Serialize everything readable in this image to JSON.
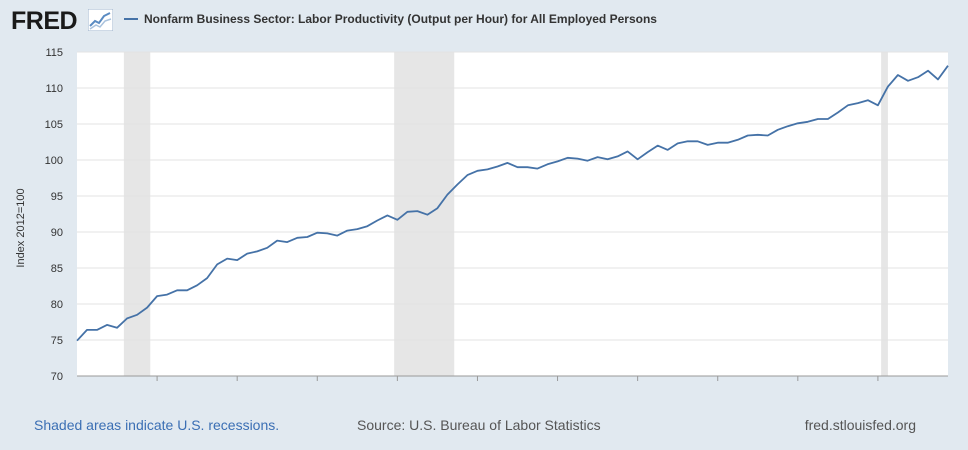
{
  "header": {
    "logo_text": "FRED",
    "logo_icon": "line-chart-icon"
  },
  "footer": {
    "recession_note": "Shaded areas indicate U.S. recessions.",
    "source": "Source: U.S. Bureau of Labor Statistics",
    "site": "fred.stlouisfed.org"
  },
  "colors": {
    "background": "#e1e9f0",
    "plot_background": "#ffffff",
    "series_line": "#4572a7",
    "recession_shade": "#e6e6e6",
    "link": "#3b6fb4"
  },
  "chart_data": {
    "type": "line",
    "title": "",
    "xlabel": "",
    "ylabel": "Index 2012=100",
    "ylim": [
      70,
      115
    ],
    "xlim": [
      2000.0,
      2021.75
    ],
    "yticks": [
      70,
      75,
      80,
      85,
      90,
      95,
      100,
      105,
      110,
      115
    ],
    "xticks": [
      "2002",
      "2004",
      "2006",
      "2008",
      "2010",
      "2012",
      "2014",
      "2016",
      "2018",
      "2020"
    ],
    "grid": "horizontal",
    "legend_position": "top",
    "recessions": [
      {
        "start": 2001.17,
        "end": 2001.83
      },
      {
        "start": 2007.92,
        "end": 2009.42
      },
      {
        "start": 2020.08,
        "end": 2020.25
      }
    ],
    "series": [
      {
        "name": "Nonfarm Business Sector: Labor Productivity (Output per Hour) for All Employed Persons",
        "x": [
          2000.0,
          2000.25,
          2000.5,
          2000.75,
          2001.0,
          2001.25,
          2001.5,
          2001.75,
          2002.0,
          2002.25,
          2002.5,
          2002.75,
          2003.0,
          2003.25,
          2003.5,
          2003.75,
          2004.0,
          2004.25,
          2004.5,
          2004.75,
          2005.0,
          2005.25,
          2005.5,
          2005.75,
          2006.0,
          2006.25,
          2006.5,
          2006.75,
          2007.0,
          2007.25,
          2007.5,
          2007.75,
          2008.0,
          2008.25,
          2008.5,
          2008.75,
          2009.0,
          2009.25,
          2009.5,
          2009.75,
          2010.0,
          2010.25,
          2010.5,
          2010.75,
          2011.0,
          2011.25,
          2011.5,
          2011.75,
          2012.0,
          2012.25,
          2012.5,
          2012.75,
          2013.0,
          2013.25,
          2013.5,
          2013.75,
          2014.0,
          2014.25,
          2014.5,
          2014.75,
          2015.0,
          2015.25,
          2015.5,
          2015.75,
          2016.0,
          2016.25,
          2016.5,
          2016.75,
          2017.0,
          2017.25,
          2017.5,
          2017.75,
          2018.0,
          2018.25,
          2018.5,
          2018.75,
          2019.0,
          2019.25,
          2019.5,
          2019.75,
          2020.0,
          2020.25,
          2020.5,
          2020.75,
          2021.0,
          2021.25,
          2021.5,
          2021.75
        ],
        "values": [
          74.9,
          76.4,
          76.4,
          77.1,
          76.7,
          78.0,
          78.5,
          79.5,
          81.1,
          81.3,
          81.9,
          81.9,
          82.6,
          83.6,
          85.5,
          86.3,
          86.1,
          87.0,
          87.3,
          87.8,
          88.8,
          88.6,
          89.2,
          89.3,
          89.9,
          89.8,
          89.5,
          90.2,
          90.4,
          90.8,
          91.6,
          92.3,
          91.7,
          92.8,
          92.9,
          92.4,
          93.3,
          95.2,
          96.6,
          97.9,
          98.5,
          98.7,
          99.1,
          99.6,
          99.0,
          99.0,
          98.8,
          99.4,
          99.8,
          100.3,
          100.2,
          99.9,
          100.4,
          100.1,
          100.5,
          101.2,
          100.1,
          101.1,
          102.0,
          101.4,
          102.3,
          102.6,
          102.6,
          102.1,
          102.4,
          102.4,
          102.8,
          103.4,
          103.5,
          103.4,
          104.2,
          104.7,
          105.1,
          105.3,
          105.7,
          105.7,
          106.6,
          107.6,
          107.9,
          108.3,
          107.6,
          110.2,
          111.8,
          111.0,
          111.5,
          112.4,
          111.2,
          113.1
        ]
      }
    ]
  }
}
